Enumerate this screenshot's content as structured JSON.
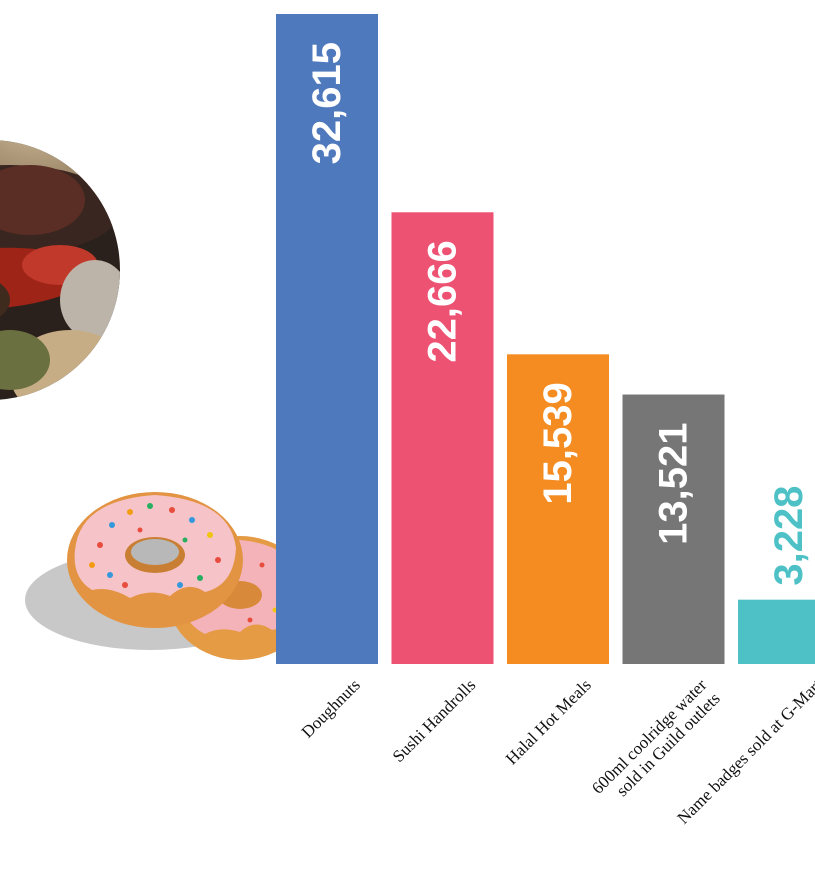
{
  "chart_data": {
    "type": "bar",
    "categories": [
      "Doughnuts",
      "Sushi Handrolls",
      "Halal Hot Meals",
      "600ml coolridge water sold in Guild outlets",
      "Name badges sold at G-Mart"
    ],
    "category_lines": [
      [
        "Doughnuts"
      ],
      [
        "Sushi Handrolls"
      ],
      [
        "Halal Hot Meals"
      ],
      [
        "600ml coolridge water",
        "sold in Guild outlets"
      ],
      [
        "Name badges sold at G-Mart"
      ]
    ],
    "values": [
      32615,
      22666,
      15539,
      13521,
      3228
    ],
    "value_labels": [
      "32,615",
      "22,666",
      "15,539",
      "13,521",
      "3,228"
    ],
    "colors": [
      "#4f79bd",
      "#ee5273",
      "#f48c21",
      "#767676",
      "#4dc1c5"
    ],
    "title": "",
    "xlabel": "",
    "ylabel": "",
    "ylim": [
      0,
      32615
    ],
    "grid": false,
    "legend": "none"
  },
  "illustrations": {
    "photo": "sandwich-photo",
    "donuts": "doughnut-illustration"
  }
}
